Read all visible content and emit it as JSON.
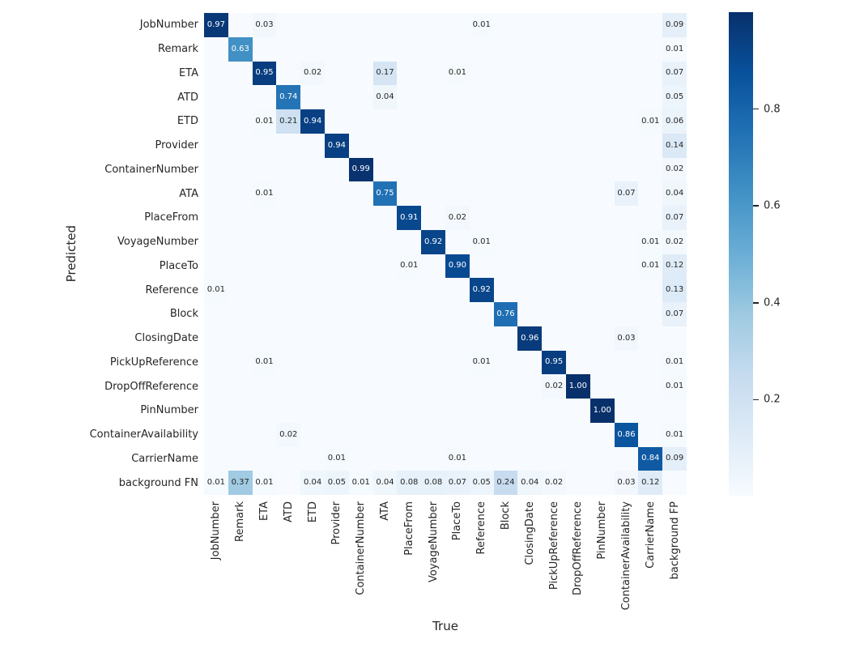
{
  "chart_data": {
    "type": "heatmap",
    "title": "",
    "xlabel": "True",
    "ylabel": "Predicted",
    "rows": [
      "JobNumber",
      "Remark",
      "ETA",
      "ATD",
      "ETD",
      "Provider",
      "ContainerNumber",
      "ATA",
      "PlaceFrom",
      "VoyageNumber",
      "PlaceTo",
      "Reference",
      "Block",
      "ClosingDate",
      "PickUpReference",
      "DropOffReference",
      "PinNumber",
      "ContainerAvailability",
      "CarrierName",
      "background FN"
    ],
    "cols": [
      "JobNumber",
      "Remark",
      "ETA",
      "ATD",
      "ETD",
      "Provider",
      "ContainerNumber",
      "ATA",
      "PlaceFrom",
      "VoyageNumber",
      "PlaceTo",
      "Reference",
      "Block",
      "ClosingDate",
      "PickUpReference",
      "DropOffReference",
      "PinNumber",
      "ContainerAvailability",
      "CarrierName",
      "background FP"
    ],
    "matrix": [
      [
        0.97,
        0,
        0.03,
        0,
        0,
        0,
        0,
        0,
        0,
        0,
        0,
        0.01,
        0,
        0,
        0,
        0,
        0,
        0,
        0,
        0.09
      ],
      [
        0,
        0.63,
        0,
        0,
        0,
        0,
        0,
        0,
        0,
        0,
        0,
        0,
        0,
        0,
        0,
        0,
        0,
        0,
        0,
        0.01
      ],
      [
        0,
        0,
        0.95,
        0,
        0.02,
        0,
        0,
        0.17,
        0,
        0,
        0.01,
        0,
        0,
        0,
        0,
        0,
        0,
        0,
        0,
        0.07
      ],
      [
        0,
        0,
        0,
        0.74,
        0,
        0,
        0,
        0.04,
        0,
        0,
        0,
        0,
        0,
        0,
        0,
        0,
        0,
        0,
        0,
        0.05
      ],
      [
        0,
        0,
        0.01,
        0.21,
        0.94,
        0,
        0,
        0,
        0,
        0,
        0,
        0,
        0,
        0,
        0,
        0,
        0,
        0,
        0.01,
        0.06
      ],
      [
        0,
        0,
        0,
        0,
        0,
        0.94,
        0,
        0,
        0,
        0,
        0,
        0,
        0,
        0,
        0,
        0,
        0,
        0,
        0,
        0.14
      ],
      [
        0,
        0,
        0,
        0,
        0,
        0,
        0.99,
        0,
        0,
        0,
        0,
        0,
        0,
        0,
        0,
        0,
        0,
        0,
        0,
        0.02
      ],
      [
        0,
        0,
        0.01,
        0,
        0,
        0,
        0,
        0.75,
        0,
        0,
        0,
        0,
        0,
        0,
        0,
        0,
        0,
        0.07,
        0,
        0.04
      ],
      [
        0,
        0,
        0,
        0,
        0,
        0,
        0,
        0,
        0.91,
        0,
        0.02,
        0,
        0,
        0,
        0,
        0,
        0,
        0,
        0,
        0.07
      ],
      [
        0,
        0,
        0,
        0,
        0,
        0,
        0,
        0,
        0,
        0.92,
        0,
        0.01,
        0,
        0,
        0,
        0,
        0,
        0,
        0.01,
        0.02
      ],
      [
        0,
        0,
        0,
        0,
        0,
        0,
        0,
        0,
        0.01,
        0,
        0.9,
        0,
        0,
        0,
        0,
        0,
        0,
        0,
        0.01,
        0.12
      ],
      [
        0.01,
        0,
        0,
        0,
        0,
        0,
        0,
        0,
        0,
        0,
        0,
        0.92,
        0,
        0,
        0,
        0,
        0,
        0,
        0,
        0.13
      ],
      [
        0,
        0,
        0,
        0,
        0,
        0,
        0,
        0,
        0,
        0,
        0,
        0,
        0.76,
        0,
        0,
        0,
        0,
        0,
        0,
        0.07
      ],
      [
        0,
        0,
        0,
        0,
        0,
        0,
        0,
        0,
        0,
        0,
        0,
        0,
        0,
        0.96,
        0,
        0,
        0,
        0.03,
        0,
        0
      ],
      [
        0,
        0,
        0.01,
        0,
        0,
        0,
        0,
        0,
        0,
        0,
        0,
        0.01,
        0,
        0,
        0.95,
        0,
        0,
        0,
        0,
        0.01
      ],
      [
        0,
        0,
        0,
        0,
        0,
        0,
        0,
        0,
        0,
        0,
        0,
        0,
        0,
        0,
        0.02,
        1.0,
        0,
        0,
        0,
        0.01
      ],
      [
        0,
        0,
        0,
        0,
        0,
        0,
        0,
        0,
        0,
        0,
        0,
        0,
        0,
        0,
        0,
        0,
        1.0,
        0,
        0,
        0
      ],
      [
        0,
        0,
        0,
        0.02,
        0,
        0,
        0,
        0,
        0,
        0,
        0,
        0,
        0,
        0,
        0,
        0,
        0,
        0.86,
        0,
        0.01
      ],
      [
        0,
        0,
        0,
        0,
        0,
        0.01,
        0,
        0,
        0,
        0,
        0.01,
        0,
        0,
        0,
        0,
        0,
        0,
        0,
        0.84,
        0.09
      ],
      [
        0.01,
        0.37,
        0.01,
        0,
        0.04,
        0.05,
        0.01,
        0.04,
        0.08,
        0.08,
        0.07,
        0.05,
        0.24,
        0.04,
        0.02,
        0,
        0,
        0.03,
        0.12,
        0
      ]
    ],
    "annot_format": ".2f",
    "hide_zero_annotations": true,
    "grid": false,
    "colorbar": {
      "vmin": 0,
      "vmax": 1,
      "tick_labels": [
        "0.8",
        "0.6",
        "0.4",
        "0.2"
      ],
      "tick_values": [
        0.8,
        0.6,
        0.4,
        0.2
      ],
      "colormap": "Blues"
    }
  },
  "colors": {
    "background": "#ffffff",
    "text": "#262626",
    "annotation_light": "#ffffff",
    "annotation_dark": "#262626",
    "colormap_anchors": [
      {
        "t": 0.0,
        "hex": "#f7fbff"
      },
      {
        "t": 0.125,
        "hex": "#deebf7"
      },
      {
        "t": 0.25,
        "hex": "#c6dbef"
      },
      {
        "t": 0.375,
        "hex": "#9ecae1"
      },
      {
        "t": 0.5,
        "hex": "#6baed6"
      },
      {
        "t": 0.625,
        "hex": "#4292c6"
      },
      {
        "t": 0.75,
        "hex": "#2171b5"
      },
      {
        "t": 0.875,
        "hex": "#08519c"
      },
      {
        "t": 1.0,
        "hex": "#08306b"
      }
    ]
  }
}
